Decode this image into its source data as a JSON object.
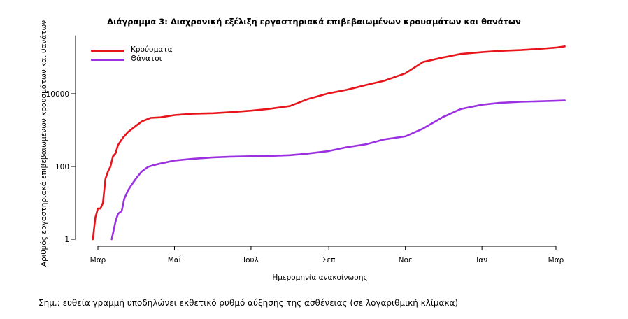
{
  "chart_data": {
    "type": "line",
    "title": "Διάγραμμα 3: Διαχρονική εξέλιξη εργαστηριακά επιβεβαιωμένων κρουσμάτων και θανάτων",
    "xlabel": "Ημερομηνία ανακοίνωσης",
    "ylabel": "Αριθμός εργαστηριακά επιβεβαιωμένων κρουσμάτων και θανάτων",
    "note": "Σημ.: ευθεία γραμμή υποδηλώνει εκθετικό ρυθμό αύξησης της ασθένειας (σε λογαριθμική κλίμακα)",
    "y_scale": "log",
    "ylim": [
      1,
      400000
    ],
    "xlim": [
      "2020-02-25",
      "2021-03-10"
    ],
    "y_ticks": [
      1,
      100,
      10000
    ],
    "y_tick_labels": [
      "1",
      "100",
      "10000"
    ],
    "x_ticks": [
      "2020-03-01",
      "2020-05-01",
      "2020-07-01",
      "2020-09-01",
      "2020-11-01",
      "2021-01-01",
      "2021-03-01"
    ],
    "x_tick_labels": [
      "Μαρ",
      "Μαΐ",
      "Ιουλ",
      "Σεπ",
      "Νοε",
      "Ιαν",
      "Μαρ"
    ],
    "grid": false,
    "legend_position": "top-left",
    "series": [
      {
        "name": "Κρούσματα",
        "color": "#e8141b",
        "x": [
          "2020-02-26",
          "2020-02-28",
          "2020-03-01",
          "2020-03-03",
          "2020-03-05",
          "2020-03-07",
          "2020-03-09",
          "2020-03-11",
          "2020-03-13",
          "2020-03-15",
          "2020-03-17",
          "2020-03-19",
          "2020-03-21",
          "2020-03-25",
          "2020-03-30",
          "2020-04-05",
          "2020-04-12",
          "2020-04-20",
          "2020-05-01",
          "2020-05-15",
          "2020-06-01",
          "2020-06-15",
          "2020-07-01",
          "2020-07-15",
          "2020-08-01",
          "2020-08-15",
          "2020-09-01",
          "2020-09-15",
          "2020-10-01",
          "2020-10-15",
          "2020-11-01",
          "2020-11-15",
          "2020-12-01",
          "2020-12-15",
          "2021-01-01",
          "2021-01-15",
          "2021-02-01",
          "2021-02-15",
          "2021-03-01",
          "2021-03-08"
        ],
        "values": [
          1,
          4,
          7,
          7,
          10,
          46,
          73,
          99,
          190,
          228,
          387,
          495,
          624,
          892,
          1212,
          1735,
          2170,
          2245,
          2591,
          2819,
          2917,
          3121,
          3432,
          3826,
          4587,
          7075,
          10317,
          12734,
          17444,
          22652,
          36406,
          74205,
          99306,
          123534,
          138850,
          149973,
          158716,
          170000,
          185000,
          200000
        ]
      },
      {
        "name": "Θάνατοι",
        "color": "#9b30e0",
        "x": [
          "2020-03-12",
          "2020-03-15",
          "2020-03-17",
          "2020-03-20",
          "2020-03-22",
          "2020-03-25",
          "2020-03-28",
          "2020-04-01",
          "2020-04-05",
          "2020-04-10",
          "2020-04-15",
          "2020-04-20",
          "2020-05-01",
          "2020-05-15",
          "2020-06-01",
          "2020-06-15",
          "2020-07-01",
          "2020-07-15",
          "2020-08-01",
          "2020-08-15",
          "2020-09-01",
          "2020-09-15",
          "2020-10-01",
          "2020-10-15",
          "2020-11-01",
          "2020-11-15",
          "2020-12-01",
          "2020-12-15",
          "2021-01-01",
          "2021-01-15",
          "2021-02-01",
          "2021-02-15",
          "2021-03-01",
          "2021-03-08"
        ],
        "values": [
          1,
          3,
          5,
          6,
          13,
          22,
          32,
          50,
          73,
          98,
          110,
          121,
          146,
          162,
          179,
          187,
          192,
          195,
          205,
          226,
          266,
          338,
          410,
          555,
          673,
          1100,
          2300,
          3800,
          5000,
          5600,
          6000,
          6200,
          6400,
          6550
        ]
      }
    ]
  }
}
